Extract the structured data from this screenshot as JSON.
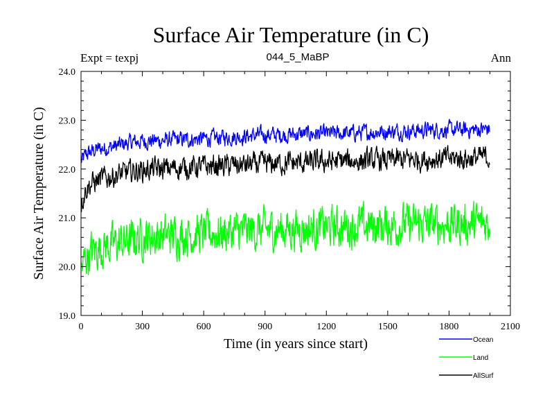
{
  "chart_data": {
    "type": "line",
    "title": "Surface Air Temperature (in C)",
    "subtitle": "044_5_MaBP",
    "left_note": "Expt = texpj",
    "right_note": "Ann",
    "xlabel": "Time (in years since start)",
    "ylabel": "Surface Air Temperature (in C)",
    "xlim": [
      0,
      2100
    ],
    "ylim": [
      19.0,
      24.0
    ],
    "xticks": [
      0,
      300,
      600,
      900,
      1200,
      1500,
      1800,
      2100
    ],
    "yticks": [
      "19.0",
      "20.0",
      "21.0",
      "22.0",
      "23.0",
      "24.0"
    ],
    "legend_position": "below-right",
    "x": [
      0,
      25,
      50,
      75,
      100,
      150,
      200,
      250,
      300,
      350,
      400,
      450,
      500,
      600,
      700,
      800,
      900,
      1000,
      1100,
      1200,
      1300,
      1400,
      1500,
      1600,
      1700,
      1800,
      1900,
      2000
    ],
    "series": [
      {
        "name": "Ocean",
        "color": "#0000ff",
        "noise": 0.18,
        "values": [
          22.15,
          22.3,
          22.35,
          22.4,
          22.42,
          22.45,
          22.5,
          22.55,
          22.57,
          22.58,
          22.58,
          22.6,
          22.6,
          22.62,
          22.65,
          22.67,
          22.7,
          22.7,
          22.72,
          22.72,
          22.73,
          22.75,
          22.77,
          22.78,
          22.8,
          22.8,
          22.8,
          22.82
        ]
      },
      {
        "name": "Land",
        "color": "#00ff00",
        "noise": 0.45,
        "values": [
          19.9,
          20.2,
          20.3,
          20.35,
          20.4,
          20.45,
          20.5,
          20.55,
          20.6,
          20.62,
          20.63,
          20.65,
          20.66,
          20.68,
          20.7,
          20.73,
          20.75,
          20.77,
          20.78,
          20.8,
          20.82,
          20.83,
          20.85,
          20.86,
          20.87,
          20.88,
          20.88,
          20.9
        ]
      },
      {
        "name": "AllSurf",
        "color": "#000000",
        "noise": 0.25,
        "values": [
          21.3,
          21.6,
          21.7,
          21.75,
          21.8,
          21.85,
          21.9,
          21.95,
          21.98,
          22.0,
          22.0,
          22.02,
          22.03,
          22.05,
          22.07,
          22.08,
          22.1,
          22.12,
          22.13,
          22.15,
          22.16,
          22.17,
          22.18,
          22.2,
          22.2,
          22.22,
          22.22,
          22.25
        ]
      }
    ]
  }
}
